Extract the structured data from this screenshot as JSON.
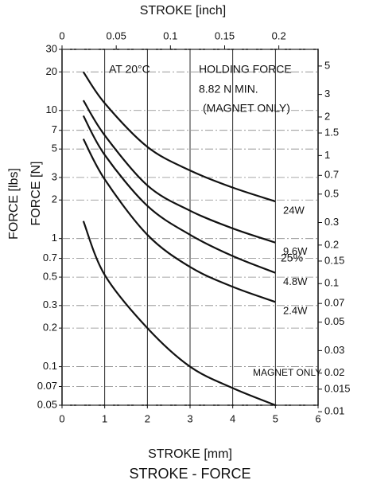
{
  "chart_data": {
    "type": "line",
    "title": "STROKE - FORCE",
    "x_label": "STROKE [mm]",
    "x2_label": "STROKE [inch]",
    "y_label": "FORCE [N]",
    "y_label_outer": "FORCE [lbs]",
    "log_y": true,
    "grid": true,
    "xlim": [
      0,
      6
    ],
    "xticks": [
      0,
      1,
      2,
      3,
      4,
      5,
      6
    ],
    "x2lim": [
      0,
      0.2362
    ],
    "x2ticks": [
      0,
      0.05,
      0.1,
      0.15,
      0.2
    ],
    "ylim": [
      0.05,
      30
    ],
    "yticks": [
      0.05,
      0.07,
      0.1,
      0.2,
      0.3,
      0.5,
      0.7,
      1,
      2,
      3,
      5,
      7,
      10,
      20,
      30
    ],
    "y2lim": [
      0.01124,
      6.745
    ],
    "y2ticks": [
      0.01,
      0.015,
      0.02,
      0.03,
      0.05,
      0.07,
      0.1,
      0.15,
      0.2,
      0.3,
      0.5,
      0.7,
      1,
      1.5,
      2,
      3,
      5
    ],
    "x": [
      0.5,
      1,
      2,
      3,
      4,
      5
    ],
    "series": [
      {
        "name": "24W",
        "color": "#111111",
        "values": [
          20,
          11.4,
          5.2,
          3.4,
          2.5,
          1.95
        ]
      },
      {
        "name": "9.6W",
        "color": "#111111",
        "values": [
          12,
          6.4,
          2.6,
          1.65,
          1.2,
          0.93
        ]
      },
      {
        "name": "4.8W",
        "color": "#111111",
        "values": [
          9.1,
          4.5,
          1.8,
          1.07,
          0.73,
          0.54
        ]
      },
      {
        "name": "2.4W",
        "color": "#111111",
        "values": [
          6,
          2.9,
          1.07,
          0.6,
          0.42,
          0.32
        ]
      },
      {
        "name": "MAGNET ONLY",
        "color": "#111111",
        "values": [
          1.37,
          0.52,
          0.2,
          0.1,
          0.068,
          0.05
        ]
      }
    ],
    "annotations": [
      "AT 20°C",
      "HOLDING FORCE",
      "8.82 N MIN.",
      "(MAGNET ONLY)",
      "25%"
    ]
  }
}
